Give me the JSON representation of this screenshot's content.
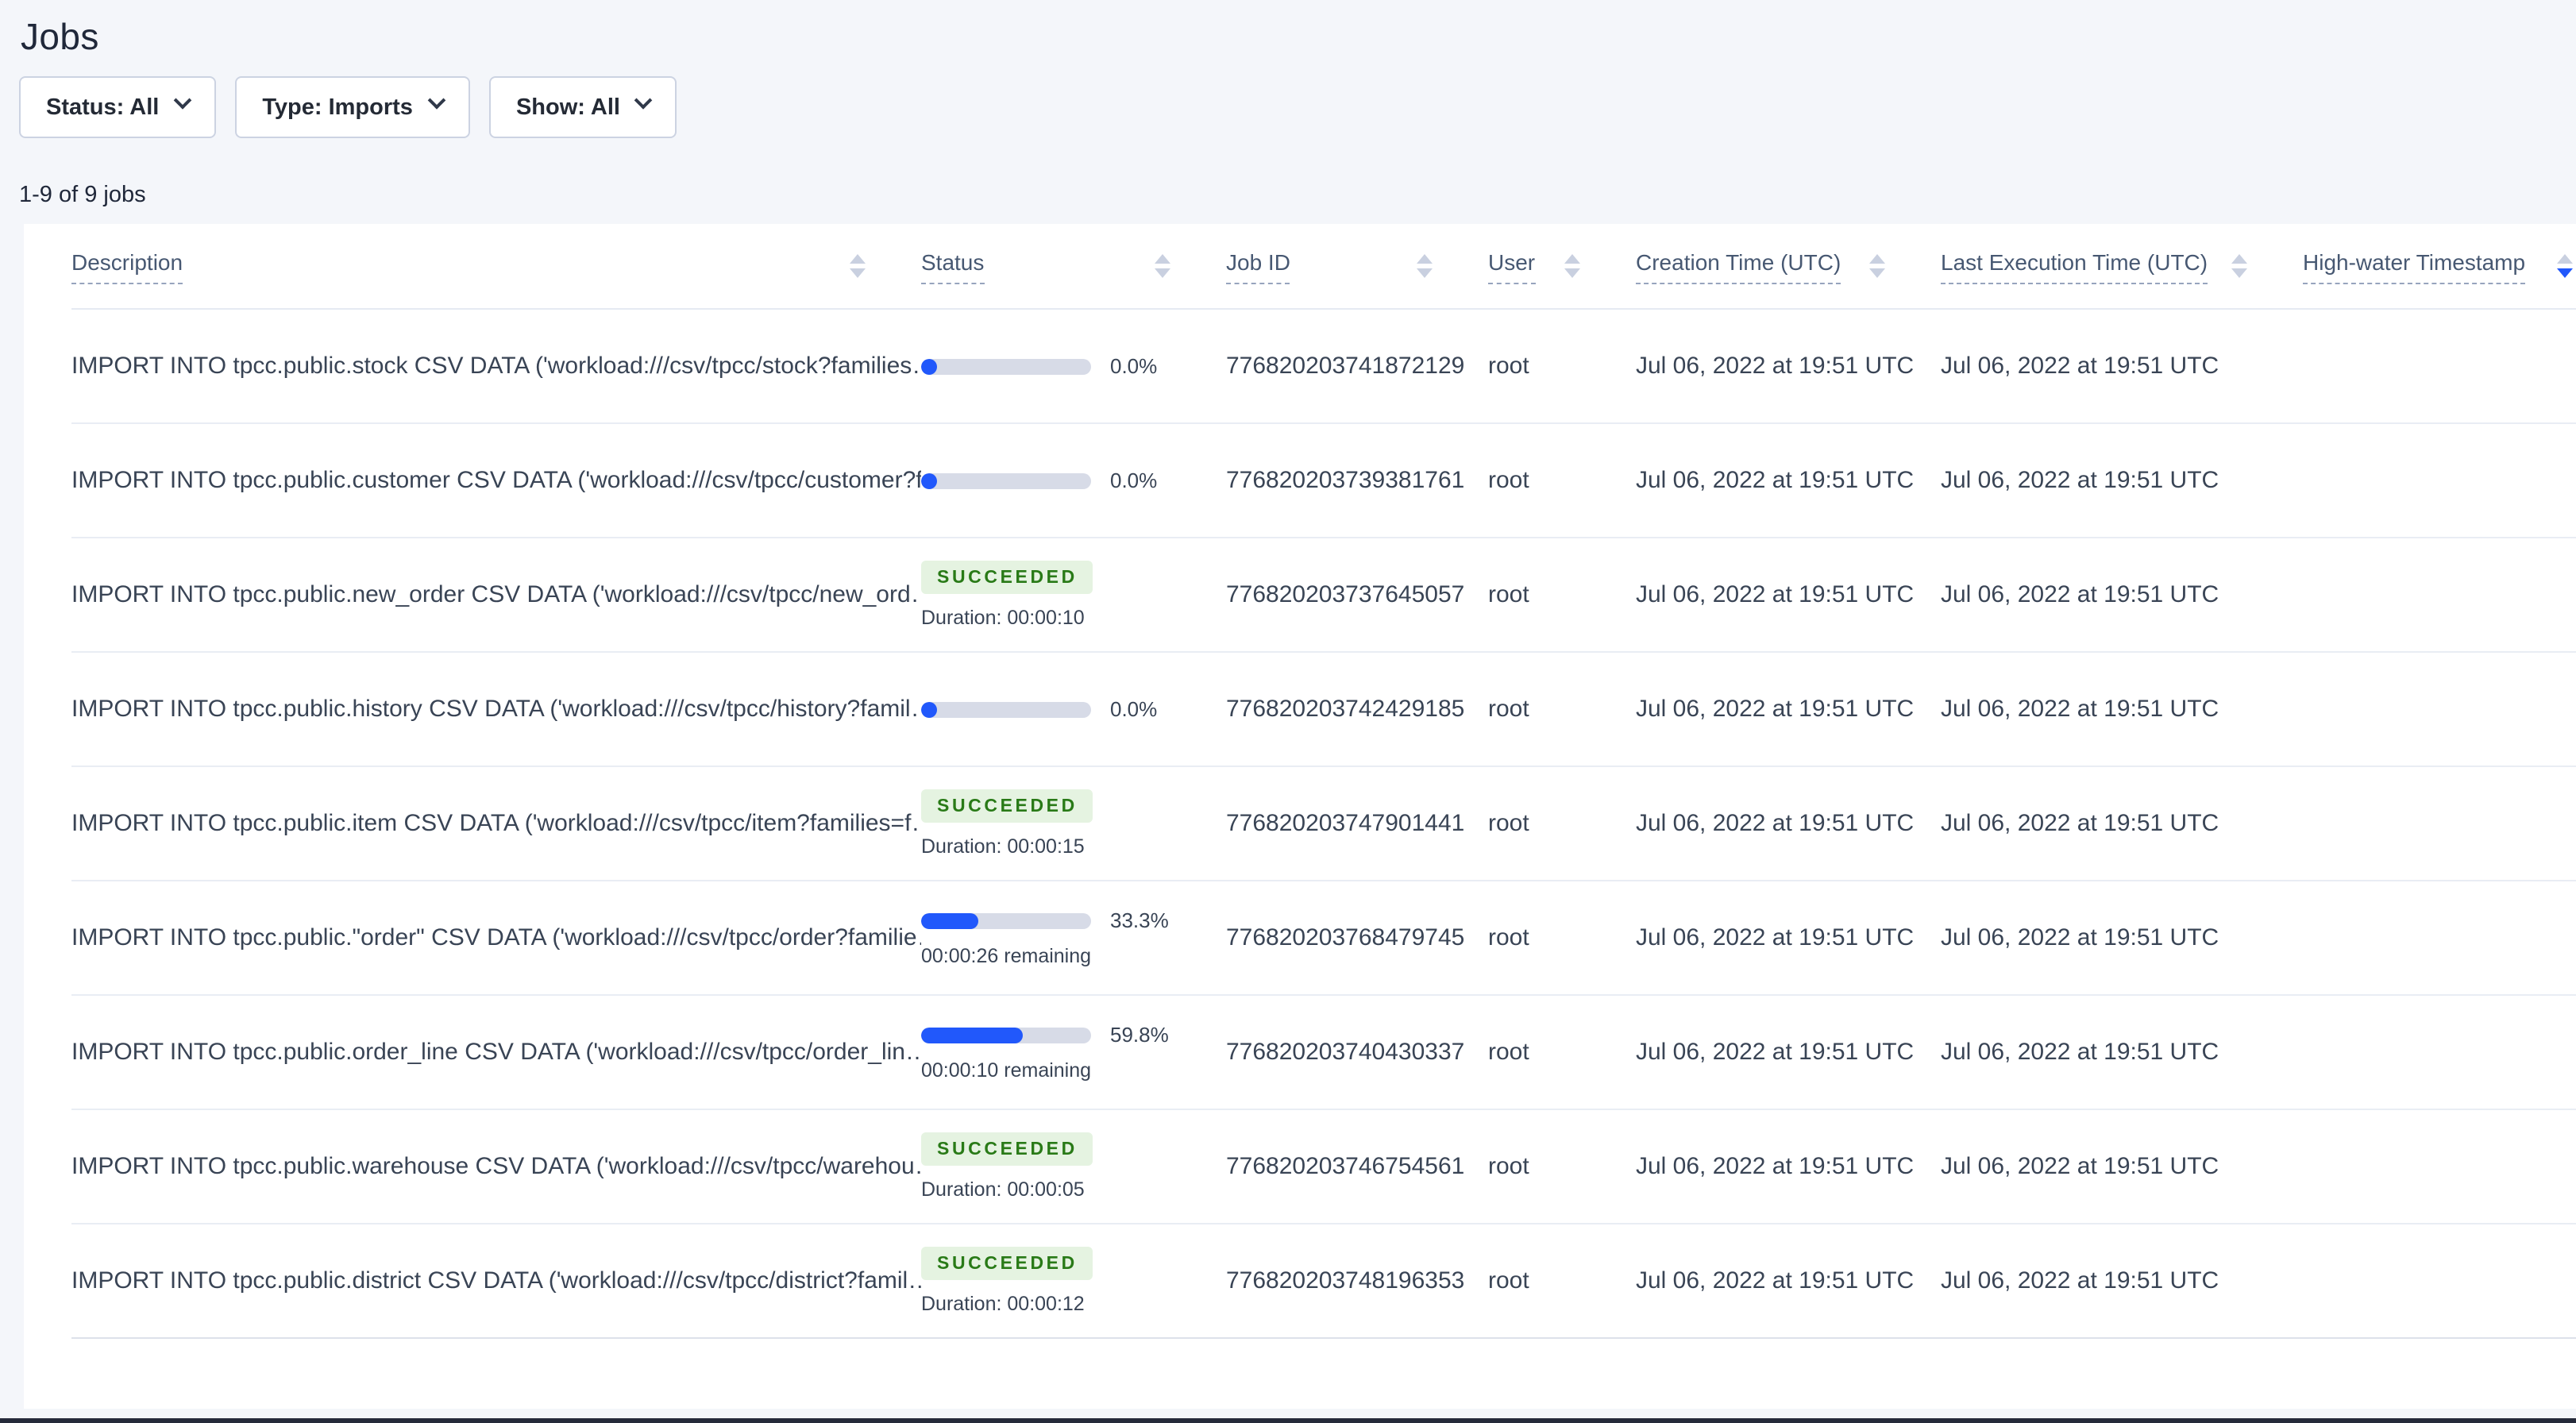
{
  "page": {
    "title": "Jobs",
    "jobs_count": "1-9 of 9 jobs"
  },
  "filters": {
    "status": {
      "label": "Status: All"
    },
    "type": {
      "label": "Type: Imports"
    },
    "show": {
      "label": "Show: All"
    }
  },
  "table": {
    "headers": {
      "description": "Description",
      "status": "Status",
      "job_id": "Job ID",
      "user": "User",
      "creation_time": "Creation Time (UTC)",
      "last_execution_time": "Last Execution Time (UTC)",
      "high_water": "High-water Timestamp"
    },
    "sort": {
      "column": "High-water Timestamp",
      "direction": "desc"
    },
    "rows": [
      {
        "description": "IMPORT INTO tpcc.public.stock CSV DATA ('workload:///csv/tpcc/stock?families…",
        "status": {
          "type": "progress",
          "percent": 0.0,
          "percent_label": "0.0%"
        },
        "job_id": "776820203741872129",
        "user": "root",
        "creation_time": "Jul 06, 2022 at 19:51 UTC",
        "last_execution_time": "Jul 06, 2022 at 19:51 UTC",
        "high_water": ""
      },
      {
        "description": "IMPORT INTO tpcc.public.customer CSV DATA ('workload:///csv/tpcc/customer?f…",
        "status": {
          "type": "progress",
          "percent": 0.0,
          "percent_label": "0.0%"
        },
        "job_id": "776820203739381761",
        "user": "root",
        "creation_time": "Jul 06, 2022 at 19:51 UTC",
        "last_execution_time": "Jul 06, 2022 at 19:51 UTC",
        "high_water": ""
      },
      {
        "description": "IMPORT INTO tpcc.public.new_order CSV DATA ('workload:///csv/tpcc/new_ord…",
        "status": {
          "type": "succeeded",
          "label": "SUCCEEDED",
          "duration": "Duration: 00:00:10"
        },
        "job_id": "776820203737645057",
        "user": "root",
        "creation_time": "Jul 06, 2022 at 19:51 UTC",
        "last_execution_time": "Jul 06, 2022 at 19:51 UTC",
        "high_water": ""
      },
      {
        "description": "IMPORT INTO tpcc.public.history CSV DATA ('workload:///csv/tpcc/history?famil…",
        "status": {
          "type": "progress",
          "percent": 0.0,
          "percent_label": "0.0%"
        },
        "job_id": "776820203742429185",
        "user": "root",
        "creation_time": "Jul 06, 2022 at 19:51 UTC",
        "last_execution_time": "Jul 06, 2022 at 19:51 UTC",
        "high_water": ""
      },
      {
        "description": "IMPORT INTO tpcc.public.item CSV DATA ('workload:///csv/tpcc/item?families=f…",
        "status": {
          "type": "succeeded",
          "label": "SUCCEEDED",
          "duration": "Duration: 00:00:15"
        },
        "job_id": "776820203747901441",
        "user": "root",
        "creation_time": "Jul 06, 2022 at 19:51 UTC",
        "last_execution_time": "Jul 06, 2022 at 19:51 UTC",
        "high_water": ""
      },
      {
        "description": "IMPORT INTO tpcc.public.\"order\" CSV DATA ('workload:///csv/tpcc/order?familie…",
        "status": {
          "type": "progress",
          "percent": 33.3,
          "percent_label": "33.3%",
          "remaining": "00:00:26 remaining"
        },
        "job_id": "776820203768479745",
        "user": "root",
        "creation_time": "Jul 06, 2022 at 19:51 UTC",
        "last_execution_time": "Jul 06, 2022 at 19:51 UTC",
        "high_water": ""
      },
      {
        "description": "IMPORT INTO tpcc.public.order_line CSV DATA ('workload:///csv/tpcc/order_lin…",
        "status": {
          "type": "progress",
          "percent": 59.8,
          "percent_label": "59.8%",
          "remaining": "00:00:10 remaining"
        },
        "job_id": "776820203740430337",
        "user": "root",
        "creation_time": "Jul 06, 2022 at 19:51 UTC",
        "last_execution_time": "Jul 06, 2022 at 19:51 UTC",
        "high_water": ""
      },
      {
        "description": "IMPORT INTO tpcc.public.warehouse CSV DATA ('workload:///csv/tpcc/warehou…",
        "status": {
          "type": "succeeded",
          "label": "SUCCEEDED",
          "duration": "Duration: 00:00:05"
        },
        "job_id": "776820203746754561",
        "user": "root",
        "creation_time": "Jul 06, 2022 at 19:51 UTC",
        "last_execution_time": "Jul 06, 2022 at 19:51 UTC",
        "high_water": ""
      },
      {
        "description": "IMPORT INTO tpcc.public.district CSV DATA ('workload:///csv/tpcc/district?famil…",
        "status": {
          "type": "succeeded",
          "label": "SUCCEEDED",
          "duration": "Duration: 00:00:12"
        },
        "job_id": "776820203748196353",
        "user": "root",
        "creation_time": "Jul 06, 2022 at 19:51 UTC",
        "last_execution_time": "Jul 06, 2022 at 19:51 UTC",
        "high_water": ""
      }
    ]
  },
  "colors": {
    "accent_blue": "#2158fb",
    "progress_track": "#d7dbe7",
    "succeeded_text": "#297a17",
    "succeeded_bg": "#e5f3e1",
    "page_bg": "#f4f6fa"
  }
}
